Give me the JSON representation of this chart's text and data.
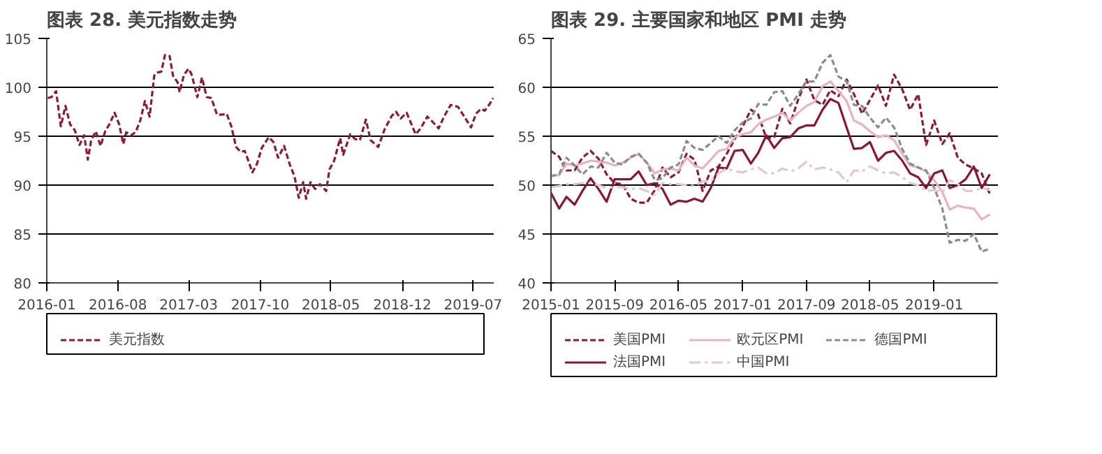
{
  "chart_data": [
    {
      "type": "line",
      "title": "图表 28. 美元指数走势",
      "legend": "bottom",
      "grid": "y",
      "xlim": [
        "2016-01-01",
        "2019-09-01"
      ],
      "xticks": [
        "2016-01",
        "2016-08",
        "2017-03",
        "2017-10",
        "2018-05",
        "2018-12",
        "2019-07"
      ],
      "ylim": [
        80,
        105
      ],
      "yticks": [
        80,
        85,
        90,
        95,
        100,
        105
      ],
      "x": [
        "2016-01-04",
        "2016-01-15",
        "2016-01-29",
        "2016-02-12",
        "2016-02-26",
        "2016-03-11",
        "2016-03-25",
        "2016-04-08",
        "2016-04-22",
        "2016-05-03",
        "2016-05-13",
        "2016-05-27",
        "2016-06-10",
        "2016-06-24",
        "2016-07-08",
        "2016-07-22",
        "2016-08-05",
        "2016-08-17",
        "2016-08-26",
        "2016-09-09",
        "2016-09-23",
        "2016-10-07",
        "2016-10-21",
        "2016-11-04",
        "2016-11-18",
        "2016-11-25",
        "2016-12-09",
        "2016-12-20",
        "2017-01-03",
        "2017-01-13",
        "2017-01-27",
        "2017-02-02",
        "2017-02-15",
        "2017-03-01",
        "2017-03-10",
        "2017-03-27",
        "2017-04-10",
        "2017-04-24",
        "2017-05-08",
        "2017-05-25",
        "2017-06-09",
        "2017-06-23",
        "2017-07-07",
        "2017-07-21",
        "2017-08-04",
        "2017-08-16",
        "2017-08-29",
        "2017-09-08",
        "2017-09-22",
        "2017-10-06",
        "2017-10-27",
        "2017-11-10",
        "2017-11-24",
        "2017-12-12",
        "2017-12-29",
        "2018-01-12",
        "2018-01-25",
        "2018-02-07",
        "2018-02-16",
        "2018-03-01",
        "2018-03-15",
        "2018-03-29",
        "2018-04-17",
        "2018-04-27",
        "2018-05-11",
        "2018-05-29",
        "2018-06-07",
        "2018-06-28",
        "2018-07-13",
        "2018-07-27",
        "2018-08-14",
        "2018-08-28",
        "2018-09-20",
        "2018-10-09",
        "2018-10-31",
        "2018-11-12",
        "2018-11-26",
        "2018-12-14",
        "2019-01-10",
        "2019-01-25",
        "2019-02-14",
        "2019-03-01",
        "2019-03-20",
        "2019-04-05",
        "2019-04-25",
        "2019-05-17",
        "2019-06-03",
        "2019-06-25",
        "2019-07-10",
        "2019-07-25",
        "2019-08-05",
        "2019-08-20",
        "2019-08-30"
      ],
      "series": [
        {
          "name": "美元指数",
          "color": "#8b1a3a",
          "line_style": "dashed",
          "values": [
            98.9,
            99.0,
            99.6,
            96.0,
            98.1,
            96.2,
            95.6,
            94.1,
            95.1,
            92.6,
            94.6,
            95.5,
            94.0,
            95.5,
            96.3,
            97.4,
            96.2,
            94.2,
            95.4,
            95.1,
            95.4,
            96.6,
            98.6,
            97.0,
            101.2,
            101.5,
            101.6,
            103.3,
            103.2,
            101.2,
            100.5,
            99.5,
            101.3,
            101.9,
            101.3,
            99.0,
            101.0,
            99.0,
            98.9,
            97.2,
            97.2,
            97.3,
            96.0,
            93.9,
            93.4,
            93.5,
            92.3,
            91.3,
            92.2,
            93.8,
            94.9,
            94.4,
            92.8,
            94.0,
            92.1,
            90.9,
            88.7,
            90.3,
            88.6,
            90.3,
            89.6,
            90.1,
            89.4,
            91.6,
            92.5,
            94.8,
            93.1,
            95.2,
            94.7,
            94.6,
            96.7,
            94.6,
            93.9,
            95.7,
            97.1,
            97.5,
            96.8,
            97.4,
            95.2,
            95.8,
            97.0,
            96.5,
            95.8,
            97.0,
            98.2,
            98.0,
            97.1,
            95.9,
            97.3,
            97.8,
            97.6,
            98.3,
            98.9
          ]
        }
      ]
    },
    {
      "type": "line",
      "title": "图表 29. 主要国家和地区 PMI 走势",
      "legend": "bottom",
      "grid": "y",
      "xlim": [
        "2015-01-01",
        "2019-09-01"
      ],
      "xticks": [
        "2015-01",
        "2015-09",
        "2016-05",
        "2017-01",
        "2017-09",
        "2018-05",
        "2019-01"
      ],
      "ylim": [
        40,
        65
      ],
      "yticks": [
        40,
        45,
        50,
        55,
        60,
        65
      ],
      "x": [
        "2015-01",
        "2015-02",
        "2015-03",
        "2015-04",
        "2015-05",
        "2015-06",
        "2015-07",
        "2015-08",
        "2015-09",
        "2015-10",
        "2015-11",
        "2015-12",
        "2016-01",
        "2016-02",
        "2016-03",
        "2016-04",
        "2016-05",
        "2016-06",
        "2016-07",
        "2016-08",
        "2016-09",
        "2016-10",
        "2016-11",
        "2016-12",
        "2017-01",
        "2017-02",
        "2017-03",
        "2017-04",
        "2017-05",
        "2017-06",
        "2017-07",
        "2017-08",
        "2017-09",
        "2017-10",
        "2017-11",
        "2017-12",
        "2018-01",
        "2018-02",
        "2018-03",
        "2018-04",
        "2018-05",
        "2018-06",
        "2018-07",
        "2018-08",
        "2018-09",
        "2018-10",
        "2018-11",
        "2018-12",
        "2019-01",
        "2019-02",
        "2019-03",
        "2019-04",
        "2019-05",
        "2019-06",
        "2019-07",
        "2019-08"
      ],
      "series": [
        {
          "name": "美国PMI",
          "color": "#8b1a3a",
          "line_style": "dashed",
          "values": [
            53.5,
            52.9,
            51.5,
            51.5,
            52.8,
            53.5,
            52.7,
            51.1,
            50.2,
            50.1,
            48.6,
            48.2,
            48.2,
            49.5,
            51.8,
            50.8,
            51.3,
            53.2,
            52.6,
            49.4,
            51.5,
            51.9,
            53.2,
            54.7,
            56.0,
            57.7,
            57.2,
            54.8,
            54.9,
            57.8,
            56.3,
            58.8,
            60.8,
            58.7,
            58.2,
            59.7,
            59.1,
            60.8,
            59.3,
            57.3,
            58.7,
            60.2,
            58.1,
            61.3,
            59.8,
            57.7,
            59.3,
            54.1,
            56.6,
            54.2,
            55.3,
            52.8,
            52.1,
            51.7,
            51.2,
            49.1
          ]
        },
        {
          "name": "欧元区PMI",
          "color": "#e8b4b8",
          "line_style": "solid",
          "values": [
            51.0,
            51.0,
            52.2,
            52.0,
            52.2,
            52.5,
            52.4,
            52.3,
            52.0,
            52.3,
            52.8,
            53.2,
            52.3,
            51.2,
            51.6,
            51.7,
            51.5,
            52.8,
            52.0,
            51.7,
            52.6,
            53.5,
            53.7,
            54.9,
            55.2,
            55.4,
            56.2,
            56.7,
            57.0,
            57.4,
            56.6,
            57.4,
            58.1,
            58.5,
            60.1,
            60.6,
            59.6,
            58.6,
            56.6,
            56.2,
            55.5,
            54.9,
            55.1,
            54.6,
            53.2,
            52.0,
            51.8,
            51.4,
            50.5,
            49.3,
            47.5,
            47.9,
            47.7,
            47.6,
            46.5,
            47.0
          ]
        },
        {
          "name": "德国PMI",
          "color": "#8c8c8c",
          "line_style": "dashed",
          "values": [
            50.9,
            51.1,
            52.8,
            52.0,
            51.1,
            51.9,
            51.8,
            53.3,
            52.3,
            52.1,
            52.9,
            53.2,
            52.3,
            50.5,
            50.7,
            51.8,
            52.1,
            54.5,
            53.8,
            53.6,
            54.3,
            55.0,
            54.3,
            55.6,
            56.4,
            56.8,
            58.3,
            58.2,
            59.5,
            59.6,
            58.1,
            59.3,
            60.6,
            60.6,
            62.5,
            63.3,
            61.1,
            60.6,
            58.2,
            58.1,
            56.9,
            55.9,
            56.9,
            55.9,
            53.7,
            52.2,
            51.8,
            51.5,
            49.7,
            47.6,
            44.1,
            44.4,
            44.3,
            45.0,
            43.2,
            43.5
          ]
        },
        {
          "name": "法国PMI",
          "color": "#8b1535",
          "line_style": "solid",
          "values": [
            49.2,
            47.6,
            48.8,
            48.0,
            49.4,
            50.7,
            49.6,
            48.3,
            50.6,
            50.6,
            50.6,
            51.4,
            50.0,
            50.2,
            49.6,
            48.0,
            48.4,
            48.3,
            48.6,
            48.3,
            49.7,
            51.8,
            51.7,
            53.5,
            53.6,
            52.2,
            53.3,
            55.1,
            53.8,
            54.8,
            54.9,
            55.8,
            56.1,
            56.1,
            57.7,
            58.8,
            58.4,
            55.9,
            53.7,
            53.8,
            54.4,
            52.5,
            53.3,
            53.5,
            52.5,
            51.2,
            50.8,
            49.7,
            51.2,
            51.5,
            49.7,
            50.0,
            50.6,
            51.9,
            49.7,
            51.1
          ]
        },
        {
          "name": "中国PMI",
          "color": "#e6c6c6",
          "line_style": "dashdot",
          "values": [
            49.8,
            49.9,
            50.1,
            50.1,
            50.2,
            50.2,
            50.0,
            49.7,
            49.8,
            49.8,
            49.6,
            49.7,
            49.4,
            49.0,
            50.2,
            50.1,
            50.1,
            50.0,
            49.9,
            50.4,
            50.4,
            51.2,
            51.7,
            51.4,
            51.3,
            51.6,
            51.8,
            51.2,
            51.2,
            51.7,
            51.4,
            51.7,
            52.4,
            51.6,
            51.8,
            51.6,
            51.3,
            50.3,
            51.5,
            51.4,
            51.9,
            51.5,
            51.2,
            51.3,
            50.8,
            50.2,
            50.0,
            49.4,
            49.5,
            49.2,
            50.5,
            50.1,
            49.4,
            49.4,
            49.7,
            49.5
          ]
        }
      ]
    }
  ]
}
